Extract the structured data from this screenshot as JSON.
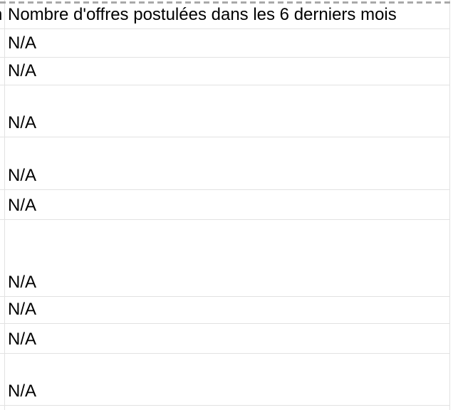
{
  "sheet": {
    "header": "Nombre d'offres postulées dans les 6 derniers mois",
    "adjacent_column_fragment": "n",
    "rows": [
      {
        "value": "N/A"
      },
      {
        "value": "N/A"
      },
      {
        "value": "N/A"
      },
      {
        "value": "N/A"
      },
      {
        "value": "N/A"
      },
      {
        "value": "N/A"
      },
      {
        "value": "N/A"
      },
      {
        "value": "N/A"
      },
      {
        "value": "N/A"
      }
    ]
  },
  "colors": {
    "grid_line": "#e2e2e2",
    "dashed_line": "#a9a9a9",
    "text": "#000000",
    "background": "#ffffff"
  }
}
